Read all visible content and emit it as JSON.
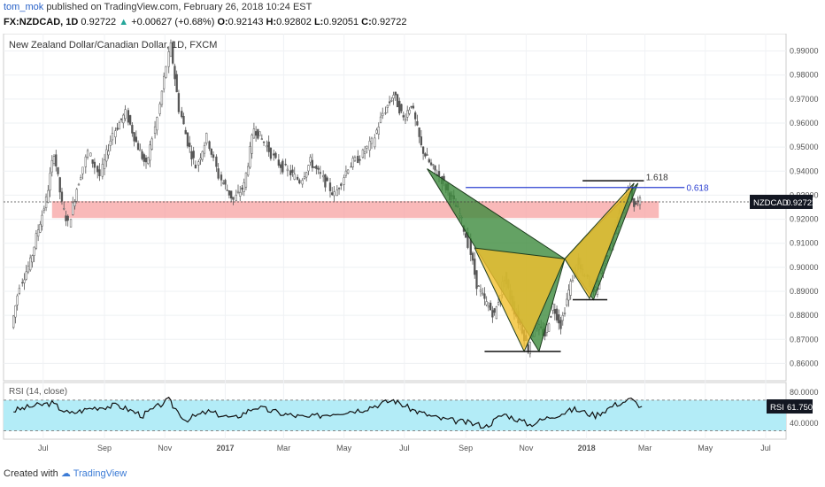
{
  "header": {
    "author": "tom_mok",
    "published": "published on TradingView.com, February 26, 2018 10:24 EST",
    "symbol": "FX:NZDCAD, 1D",
    "last": "0.92722",
    "change_arrow": "▲",
    "change": "+0.00627 (+0.68%)",
    "open_label": "O:",
    "open": "0.92143",
    "high_label": "H:",
    "high": "0.92802",
    "low_label": "L:",
    "low": "0.92051",
    "close_label": "C:",
    "close": "0.92722"
  },
  "footer": {
    "created": "Created with",
    "brand": "TradingView"
  },
  "chart_data": {
    "type": "candlestick",
    "title": "New Zealand Dollar/Canadian Dollar, 1D, FXCM",
    "ylim": [
      0.855,
      0.995
    ],
    "y_ticks": [
      "0.86000",
      "0.87000",
      "0.88000",
      "0.89000",
      "0.90000",
      "0.91000",
      "0.92000",
      "0.93000",
      "0.94000",
      "0.95000",
      "0.96000",
      "0.97000",
      "0.98000",
      "0.99000"
    ],
    "x_ticks": [
      "Jul",
      "Sep",
      "Nov",
      "2017",
      "Mar",
      "May",
      "Jul",
      "Sep",
      "Nov",
      "2018",
      "Mar",
      "May",
      "Jul"
    ],
    "price_label": "NZDCAD",
    "last_price": "0.92722",
    "price_path": [
      {
        "date": "2016-06-01",
        "close": 0.875
      },
      {
        "date": "2016-06-10",
        "close": 0.893
      },
      {
        "date": "2016-06-20",
        "close": 0.902
      },
      {
        "date": "2016-06-28",
        "close": 0.916
      },
      {
        "date": "2016-07-06",
        "close": 0.928
      },
      {
        "date": "2016-07-14",
        "close": 0.948
      },
      {
        "date": "2016-07-22",
        "close": 0.926
      },
      {
        "date": "2016-07-29",
        "close": 0.918
      },
      {
        "date": "2016-08-06",
        "close": 0.933
      },
      {
        "date": "2016-08-18",
        "close": 0.948
      },
      {
        "date": "2016-08-30",
        "close": 0.938
      },
      {
        "date": "2016-09-12",
        "close": 0.956
      },
      {
        "date": "2016-09-25",
        "close": 0.964
      },
      {
        "date": "2016-10-05",
        "close": 0.952
      },
      {
        "date": "2016-10-15",
        "close": 0.942
      },
      {
        "date": "2016-10-27",
        "close": 0.962
      },
      {
        "date": "2016-11-05",
        "close": 0.984
      },
      {
        "date": "2016-11-09",
        "close": 0.992
      },
      {
        "date": "2016-11-18",
        "close": 0.966
      },
      {
        "date": "2016-11-26",
        "close": 0.952
      },
      {
        "date": "2016-12-05",
        "close": 0.942
      },
      {
        "date": "2016-12-16",
        "close": 0.954
      },
      {
        "date": "2016-12-28",
        "close": 0.938
      },
      {
        "date": "2017-01-12",
        "close": 0.928
      },
      {
        "date": "2017-01-22",
        "close": 0.934
      },
      {
        "date": "2017-02-01",
        "close": 0.958
      },
      {
        "date": "2017-02-12",
        "close": 0.952
      },
      {
        "date": "2017-02-24",
        "close": 0.944
      },
      {
        "date": "2017-03-08",
        "close": 0.94
      },
      {
        "date": "2017-03-20",
        "close": 0.936
      },
      {
        "date": "2017-03-30",
        "close": 0.944
      },
      {
        "date": "2017-04-10",
        "close": 0.938
      },
      {
        "date": "2017-04-24",
        "close": 0.93
      },
      {
        "date": "2017-05-08",
        "close": 0.942
      },
      {
        "date": "2017-05-20",
        "close": 0.946
      },
      {
        "date": "2017-06-01",
        "close": 0.952
      },
      {
        "date": "2017-06-12",
        "close": 0.964
      },
      {
        "date": "2017-06-22",
        "close": 0.972
      },
      {
        "date": "2017-07-02",
        "close": 0.962
      },
      {
        "date": "2017-07-10",
        "close": 0.968
      },
      {
        "date": "2017-07-20",
        "close": 0.95
      },
      {
        "date": "2017-07-30",
        "close": 0.942
      },
      {
        "date": "2017-08-08",
        "close": 0.938
      },
      {
        "date": "2017-08-18",
        "close": 0.93
      },
      {
        "date": "2017-08-28",
        "close": 0.922
      },
      {
        "date": "2017-09-06",
        "close": 0.91
      },
      {
        "date": "2017-09-14",
        "close": 0.893
      },
      {
        "date": "2017-09-22",
        "close": 0.886
      },
      {
        "date": "2017-10-02",
        "close": 0.88
      },
      {
        "date": "2017-10-12",
        "close": 0.896
      },
      {
        "date": "2017-10-22",
        "close": 0.882
      },
      {
        "date": "2017-10-30",
        "close": 0.874
      },
      {
        "date": "2017-11-05",
        "close": 0.866
      },
      {
        "date": "2017-11-12",
        "close": 0.876
      },
      {
        "date": "2017-11-22",
        "close": 0.872
      },
      {
        "date": "2017-11-30",
        "close": 0.884
      },
      {
        "date": "2017-12-08",
        "close": 0.876
      },
      {
        "date": "2017-12-16",
        "close": 0.89
      },
      {
        "date": "2017-12-24",
        "close": 0.902
      },
      {
        "date": "2018-01-02",
        "close": 0.896
      },
      {
        "date": "2018-01-12",
        "close": 0.89
      },
      {
        "date": "2018-01-22",
        "close": 0.904
      },
      {
        "date": "2018-02-01",
        "close": 0.916
      },
      {
        "date": "2018-02-08",
        "close": 0.924
      },
      {
        "date": "2018-02-14",
        "close": 0.934
      },
      {
        "date": "2018-02-20",
        "close": 0.926
      },
      {
        "date": "2018-02-26",
        "close": 0.927
      }
    ],
    "zone": {
      "from": 0.9205,
      "to": 0.9275
    },
    "levels": [
      {
        "label": "1.618",
        "value": 0.9355
      },
      {
        "label": "0.618",
        "value": 0.9332
      }
    ],
    "pattern_green": [
      {
        "date": "2017-07-24",
        "price": 0.941
      },
      {
        "date": "2017-11-14",
        "price": 0.865
      },
      {
        "date": "2017-12-10",
        "price": 0.9035
      },
      {
        "date": "2018-01-08",
        "price": 0.8865
      },
      {
        "date": "2018-02-22",
        "price": 0.935
      }
    ],
    "pattern_yellow": [
      {
        "date": "2017-09-10",
        "price": 0.908
      },
      {
        "date": "2017-10-30",
        "price": 0.865
      },
      {
        "date": "2017-12-10",
        "price": 0.9035
      },
      {
        "date": "2018-01-04",
        "price": 0.887
      },
      {
        "date": "2018-02-18",
        "price": 0.935
      }
    ],
    "support_lines": [
      {
        "from": "2017-09-20",
        "to": "2017-12-06",
        "value": 0.865
      },
      {
        "from": "2017-12-18",
        "to": "2018-01-22",
        "value": 0.8865
      }
    ],
    "resistance_line": {
      "from": "2017-12-28",
      "to": "2018-02-28",
      "value": 0.936
    },
    "rsi": {
      "label": "RSI (14, close)",
      "ylim": [
        26,
        86
      ],
      "ticks": [
        "40.0000",
        "80.0000"
      ],
      "band": [
        30,
        70
      ],
      "last": "61.7507",
      "path": [
        {
          "date": "2016-06-01",
          "v": 56
        },
        {
          "date": "2016-06-20",
          "v": 62
        },
        {
          "date": "2016-07-10",
          "v": 66
        },
        {
          "date": "2016-07-28",
          "v": 52
        },
        {
          "date": "2016-08-20",
          "v": 60
        },
        {
          "date": "2016-09-15",
          "v": 63
        },
        {
          "date": "2016-10-10",
          "v": 50
        },
        {
          "date": "2016-11-05",
          "v": 70
        },
        {
          "date": "2016-11-22",
          "v": 44
        },
        {
          "date": "2016-12-15",
          "v": 55
        },
        {
          "date": "2017-01-10",
          "v": 46
        },
        {
          "date": "2017-02-01",
          "v": 61
        },
        {
          "date": "2017-03-01",
          "v": 52
        },
        {
          "date": "2017-03-25",
          "v": 47
        },
        {
          "date": "2017-04-20",
          "v": 53
        },
        {
          "date": "2017-05-20",
          "v": 58
        },
        {
          "date": "2017-06-20",
          "v": 70
        },
        {
          "date": "2017-07-12",
          "v": 56
        },
        {
          "date": "2017-08-05",
          "v": 46
        },
        {
          "date": "2017-09-01",
          "v": 41
        },
        {
          "date": "2017-09-22",
          "v": 36
        },
        {
          "date": "2017-10-10",
          "v": 52
        },
        {
          "date": "2017-11-05",
          "v": 38
        },
        {
          "date": "2017-11-25",
          "v": 48
        },
        {
          "date": "2017-12-20",
          "v": 58
        },
        {
          "date": "2018-01-10",
          "v": 50
        },
        {
          "date": "2018-01-30",
          "v": 64
        },
        {
          "date": "2018-02-15",
          "v": 71
        },
        {
          "date": "2018-02-26",
          "v": 61.75
        }
      ]
    }
  }
}
